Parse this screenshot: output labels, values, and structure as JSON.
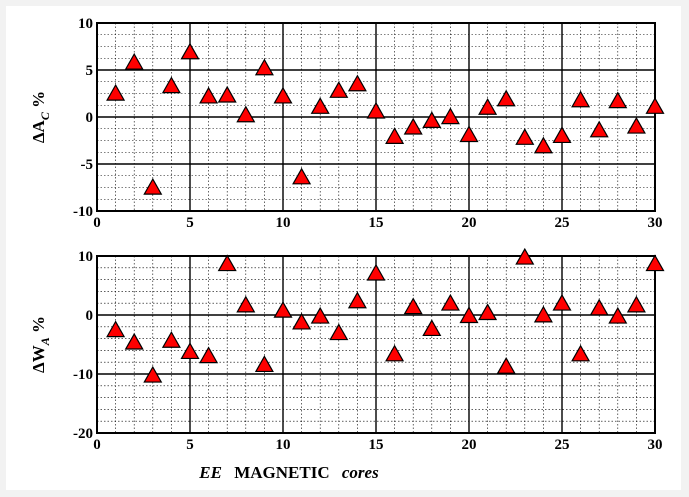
{
  "chart_data": [
    {
      "type": "scatter",
      "marker": "triangle",
      "marker_color": "#ff0000",
      "grid": true,
      "ylabel_parts": [
        "Δ",
        "A",
        "C",
        " %"
      ],
      "xlim": [
        0,
        30
      ],
      "ylim": [
        -10,
        10
      ],
      "xticks": [
        "0",
        "5",
        "10",
        "15",
        "20",
        "25",
        "30"
      ],
      "yticks": [
        "10",
        "5",
        "0",
        "-5",
        "-10"
      ],
      "x": [
        1,
        2,
        3,
        4,
        5,
        6,
        7,
        8,
        9,
        10,
        11,
        12,
        13,
        14,
        15,
        16,
        17,
        18,
        19,
        20,
        21,
        22,
        23,
        24,
        25,
        26,
        27,
        28,
        29,
        30
      ],
      "y": [
        2.4,
        5.7,
        -7.6,
        3.2,
        6.8,
        2.1,
        2.2,
        0.1,
        5.1,
        2.1,
        -6.5,
        1.0,
        2.7,
        3.4,
        0.5,
        -2.2,
        -1.2,
        -0.5,
        -0.1,
        -2.0,
        0.9,
        1.8,
        -2.3,
        -3.2,
        -2.1,
        1.7,
        -1.5,
        1.6,
        -1.1,
        1.0
      ]
    },
    {
      "type": "scatter",
      "marker": "triangle",
      "marker_color": "#ff0000",
      "grid": true,
      "ylabel_parts": [
        "Δ",
        "W",
        "A",
        " %"
      ],
      "xlabel_parts": [
        "EE",
        "MAGNETIC",
        "cores"
      ],
      "xlim": [
        0,
        30
      ],
      "ylim": [
        -20,
        10
      ],
      "xticks": [
        "0",
        "5",
        "10",
        "15",
        "20",
        "25",
        "30"
      ],
      "yticks": [
        "10",
        "0",
        "-10",
        "-20"
      ],
      "x": [
        1,
        2,
        3,
        4,
        5,
        6,
        7,
        8,
        9,
        10,
        11,
        12,
        13,
        14,
        15,
        16,
        17,
        18,
        19,
        20,
        21,
        22,
        23,
        24,
        25,
        26,
        27,
        28,
        29,
        30
      ],
      "y": [
        -2.7,
        -4.8,
        -10.4,
        -4.5,
        -6.4,
        -7.1,
        8.5,
        1.5,
        -8.6,
        0.6,
        -1.4,
        -0.4,
        -3.2,
        2.2,
        6.9,
        -6.8,
        1.2,
        -2.5,
        1.8,
        -0.3,
        0.2,
        -8.9,
        9.6,
        -0.2,
        1.8,
        -6.8,
        1.0,
        -0.4,
        1.5,
        8.5
      ]
    }
  ]
}
